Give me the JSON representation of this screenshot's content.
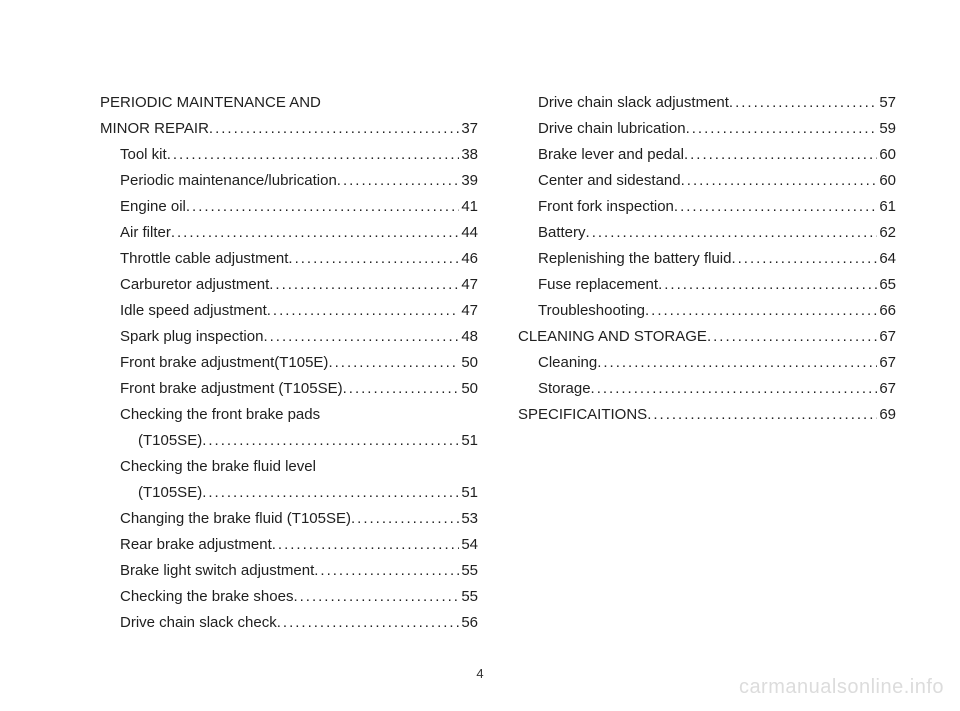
{
  "page_number": "4",
  "watermark": "carmanualsonline.info",
  "columns": [
    [
      {
        "label": "PERIODIC MAINTENANCE AND",
        "page": "",
        "indent": 0,
        "noleader": true
      },
      {
        "label": "MINOR REPAIR",
        "page": "37",
        "indent": 0
      },
      {
        "label": "Tool kit",
        "page": "38",
        "indent": 1
      },
      {
        "label": "Periodic maintenance/lubrication",
        "page": "39",
        "indent": 1
      },
      {
        "label": "Engine oil",
        "page": "41",
        "indent": 1
      },
      {
        "label": "Air filter",
        "page": "44",
        "indent": 1
      },
      {
        "label": "Throttle cable adjustment",
        "page": "46",
        "indent": 1
      },
      {
        "label": "Carburetor adjustment",
        "page": "47",
        "indent": 1
      },
      {
        "label": "Idle speed adjustment",
        "page": "47",
        "indent": 1
      },
      {
        "label": "Spark plug inspection",
        "page": "48",
        "indent": 1
      },
      {
        "label": "Front brake adjustment(T105E)",
        "page": "50",
        "indent": 1
      },
      {
        "label": "Front brake adjustment (T105SE)",
        "page": "50",
        "indent": 1
      },
      {
        "label": "Checking the front brake pads",
        "page": "",
        "indent": 1,
        "noleader": true
      },
      {
        "label": "(T105SE)",
        "page": "51",
        "indent": 2
      },
      {
        "label": "Checking the brake fluid level",
        "page": "",
        "indent": 1,
        "noleader": true
      },
      {
        "label": "(T105SE)",
        "page": "51",
        "indent": 2
      },
      {
        "label": "Changing the brake fluid (T105SE)",
        "page": "53",
        "indent": 1
      },
      {
        "label": "Rear brake adjustment",
        "page": "54",
        "indent": 1
      },
      {
        "label": "Brake light switch adjustment",
        "page": "55",
        "indent": 1
      },
      {
        "label": "Checking the brake shoes",
        "page": "55",
        "indent": 1
      },
      {
        "label": "Drive chain slack check",
        "page": "56",
        "indent": 1
      }
    ],
    [
      {
        "label": "Drive chain slack adjustment",
        "page": "57",
        "indent": 1
      },
      {
        "label": "Drive chain lubrication",
        "page": "59",
        "indent": 1
      },
      {
        "label": "Brake lever and pedal",
        "page": "60",
        "indent": 1
      },
      {
        "label": "Center and sidestand",
        "page": "60",
        "indent": 1
      },
      {
        "label": "Front fork inspection",
        "page": "61",
        "indent": 1
      },
      {
        "label": "Battery",
        "page": "62",
        "indent": 1
      },
      {
        "label": "Replenishing the battery fluid",
        "page": "64",
        "indent": 1
      },
      {
        "label": "Fuse replacement",
        "page": "65",
        "indent": 1
      },
      {
        "label": "Troubleshooting",
        "page": "66",
        "indent": 1
      },
      {
        "label": "CLEANING AND STORAGE",
        "page": "67",
        "indent": 0
      },
      {
        "label": "Cleaning",
        "page": "67",
        "indent": 1
      },
      {
        "label": "Storage",
        "page": "67",
        "indent": 1
      },
      {
        "label": "SPECIFICAITIONS",
        "page": "69",
        "indent": 0
      }
    ]
  ]
}
